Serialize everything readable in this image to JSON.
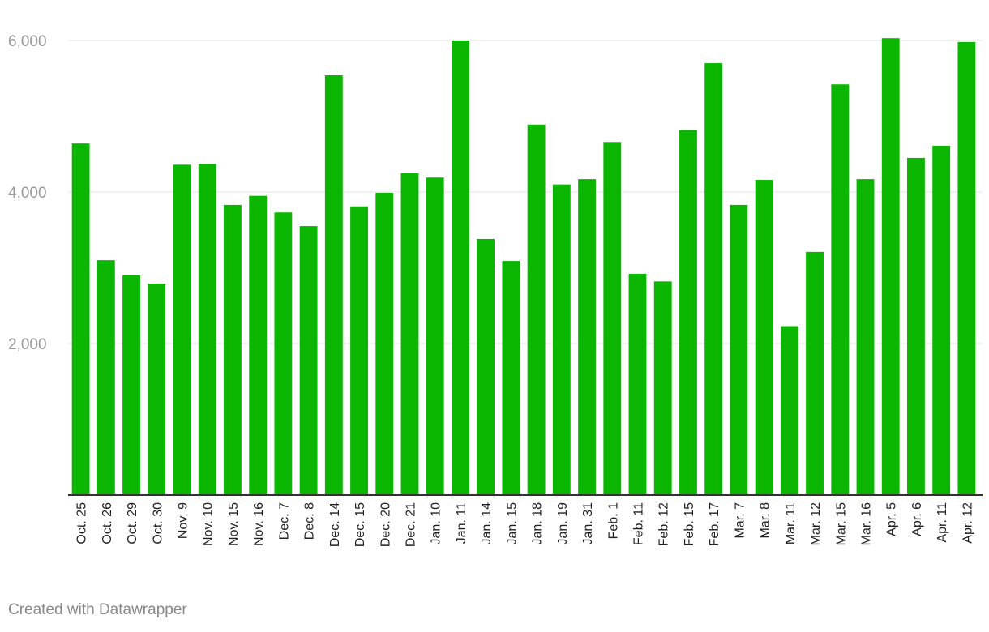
{
  "footer": {
    "credit": "Created with Datawrapper"
  },
  "colors": {
    "bar": "#0ab600",
    "grid": "#e3e3e3",
    "axis": "#333333"
  },
  "chart_data": {
    "type": "bar",
    "title": "",
    "xlabel": "",
    "ylabel": "",
    "ylim": [
      0,
      6000
    ],
    "yticks": [
      2000,
      4000,
      6000
    ],
    "ytick_labels": [
      "2,000",
      "4,000",
      "6,000"
    ],
    "grid": true,
    "categories": [
      "Oct. 25",
      "Oct. 26",
      "Oct. 29",
      "Oct. 30",
      "Nov. 9",
      "Nov. 10",
      "Nov. 15",
      "Nov. 16",
      "Dec. 7",
      "Dec. 8",
      "Dec. 14",
      "Dec. 15",
      "Dec. 20",
      "Dec. 21",
      "Jan. 10",
      "Jan. 11",
      "Jan. 14",
      "Jan. 15",
      "Jan. 18",
      "Jan. 19",
      "Jan. 31",
      "Feb. 1",
      "Feb. 11",
      "Feb. 12",
      "Feb. 15",
      "Feb. 17",
      "Mar. 7",
      "Mar. 8",
      "Mar. 11",
      "Mar. 12",
      "Mar. 15",
      "Mar. 16",
      "Apr. 5",
      "Apr. 6",
      "Apr. 11",
      "Apr. 12"
    ],
    "values": [
      4640,
      3100,
      2900,
      2790,
      4360,
      4370,
      3830,
      3950,
      3730,
      3550,
      5540,
      3810,
      3990,
      4250,
      4190,
      6000,
      3380,
      3090,
      4890,
      4100,
      4170,
      4660,
      2920,
      2820,
      4820,
      5700,
      3830,
      4160,
      2230,
      3210,
      5420,
      4170,
      6030,
      4450,
      4610,
      5980
    ]
  }
}
